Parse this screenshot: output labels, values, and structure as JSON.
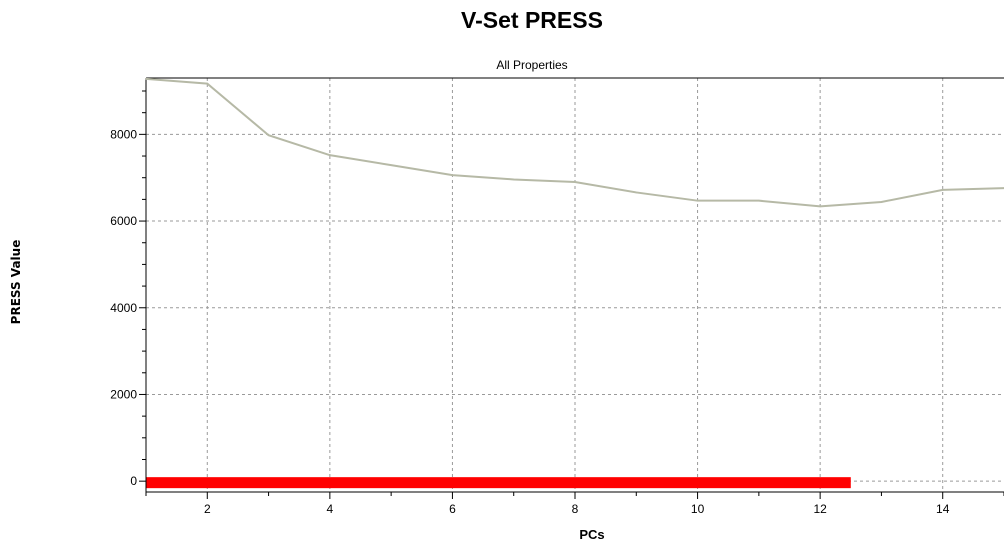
{
  "chart_data": {
    "type": "line",
    "title": "V-Set PRESS",
    "subtitle": "All Properties",
    "xlabel": "PCs",
    "ylabel": "PRESS Value",
    "xlim": [
      1,
      15
    ],
    "ylim": [
      -250,
      9300
    ],
    "x_ticks": [
      2,
      4,
      6,
      8,
      10,
      12,
      14
    ],
    "y_ticks": [
      0,
      2000,
      4000,
      6000,
      8000
    ],
    "x": [
      1,
      2,
      3,
      4,
      5,
      6,
      7,
      8,
      9,
      10,
      11,
      12,
      13,
      14,
      15
    ],
    "series": [
      {
        "values": [
          9280,
          9170,
          7980,
          7520,
          7290,
          7060,
          6960,
          6900,
          6660,
          6470,
          6470,
          6340,
          6440,
          6720,
          6760
        ]
      }
    ],
    "bar": {
      "x_start": 1,
      "x_end": 12.5,
      "value": 0,
      "color": "#ff0000"
    },
    "line_color": "#b6b9a6",
    "grid": true,
    "legend": "none"
  }
}
